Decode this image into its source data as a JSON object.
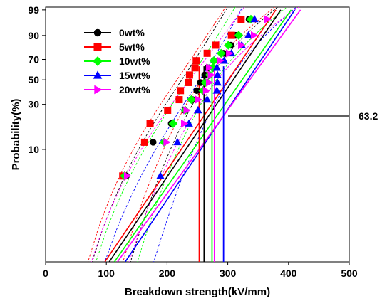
{
  "chart_data": {
    "type": "scatter",
    "title": "",
    "xlabel": "Breakdown strength(kV/mm)",
    "ylabel": "Probability(%)",
    "xlim": [
      0,
      500
    ],
    "x_ticks": [
      "0",
      "100",
      "200",
      "300",
      "400",
      "500"
    ],
    "y_ticks": [
      "10",
      "30",
      "50",
      "70",
      "90",
      "99"
    ],
    "y_scale": "weibull probability",
    "legend_position": "top-left",
    "grid": false,
    "annotation": "63.2",
    "series": [
      {
        "name": "0wt%",
        "color": "#000000",
        "marker": "circle",
        "x": [
          133,
          177,
          207,
          229,
          242,
          249,
          255,
          262,
          267,
          277,
          293,
          305,
          313,
          335
        ],
        "y": [
          5.0,
          12.0,
          19.1,
          26.2,
          33.3,
          40.4,
          47.5,
          54.6,
          61.7,
          68.8,
          75.9,
          83.0,
          90.1,
          97.2
        ],
        "weibull_beta": 6.0,
        "fit_line": [
          [
            104.8,
            0.5
          ],
          [
            387.3,
            99
          ]
        ],
        "eta": 261
      },
      {
        "name": "5wt%",
        "color": "#ff0000",
        "marker": "square",
        "x": [
          127,
          163,
          172,
          201,
          220,
          222,
          235,
          237,
          246,
          248,
          266,
          280,
          306,
          322
        ],
        "y": [
          5.0,
          12.0,
          19.1,
          26.2,
          33.3,
          40.4,
          47.5,
          54.6,
          61.7,
          68.8,
          75.9,
          83.0,
          90.1,
          97.2
        ],
        "weibull_beta": 5.6,
        "fit_line": [
          [
            97.6,
            0.5
          ],
          [
            379.1,
            99
          ]
        ],
        "eta": 253
      },
      {
        "name": "10wt%",
        "color": "#00ff00",
        "marker": "diamond",
        "x": [
          130,
          195,
          210,
          230,
          240,
          259,
          263,
          270,
          275,
          277,
          289,
          301,
          318,
          338
        ],
        "y": [
          5.0,
          12.0,
          19.1,
          26.2,
          33.3,
          40.4,
          47.5,
          54.6,
          61.7,
          68.8,
          75.9,
          83.0,
          90.1,
          97.2
        ],
        "weibull_beta": 6.2,
        "fit_line": [
          [
            113.3,
            0.5
          ],
          [
            404.3,
            99
          ]
        ],
        "eta": 274
      },
      {
        "name": "15wt%",
        "color": "#0000ff",
        "marker": "triangle-up",
        "x": [
          189,
          217,
          236,
          251,
          266,
          282,
          283,
          283,
          282,
          294,
          306,
          323,
          334,
          344
        ],
        "y": [
          5.0,
          12.0,
          19.1,
          26.2,
          33.3,
          40.4,
          47.5,
          54.6,
          61.7,
          68.8,
          75.9,
          83.0,
          90.1,
          97.2
        ],
        "weibull_beta": 7.0,
        "fit_line": [
          [
            131.1,
            0.5
          ],
          [
            410.3,
            99
          ]
        ],
        "eta": 293
      },
      {
        "name": "20wt%",
        "color": "#ff00ff",
        "marker": "triangle-right",
        "x": [
          134,
          199,
          228,
          232,
          251,
          264,
          269,
          272,
          269,
          287,
          302,
          322,
          343,
          365
        ],
        "y": [
          5.0,
          12.0,
          19.1,
          26.2,
          33.3,
          40.4,
          47.5,
          54.6,
          61.7,
          68.8,
          75.9,
          83.0,
          90.1,
          97.2
        ],
        "weibull_beta": 5.5,
        "fit_line": [
          [
            118.3,
            0.5
          ],
          [
            419.7,
            99
          ]
        ],
        "eta": 278
      }
    ]
  }
}
